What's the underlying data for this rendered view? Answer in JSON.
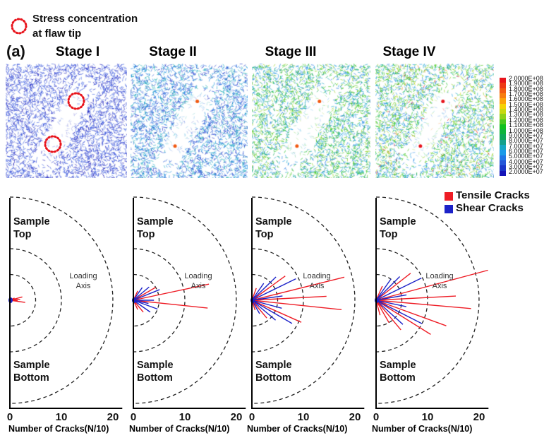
{
  "legend_top": {
    "text_line1": "Stress concentration",
    "text_line2": "at flaw tip",
    "marker_color": "#e8141c"
  },
  "panel_label": "(a)",
  "stages": [
    "Stage I",
    "Stage II",
    "Stage III",
    "Stage IV"
  ],
  "colorbar": {
    "labels": [
      "2.0000E+08",
      "1.9000E+08",
      "1.8000E+08",
      "1.7000E+08",
      "1.6000E+08",
      "1.5000E+08",
      "1.4000E+08",
      "1.3000E+08",
      "1.2000E+08",
      "1.1000E+08",
      "1.0000E+08",
      "9.0000E+07",
      "8.0000E+07",
      "7.0000E+07",
      "6.0000E+07",
      "5.0000E+07",
      "4.0000E+07",
      "3.0000E+07",
      "2.0000E+07"
    ],
    "colors": [
      "#e8141c",
      "#ee3a16",
      "#f25a12",
      "#f77d0e",
      "#fca30a",
      "#f5d204",
      "#c9d810",
      "#8fd018",
      "#4cc81e",
      "#12c01e",
      "#0fb43c",
      "#10a85a",
      "#12a08a",
      "#14a6c4",
      "#1a9ae8",
      "#2076e6",
      "#2456d8",
      "#1a36c8",
      "#1414b8"
    ]
  },
  "crack_legend": {
    "tensile": "Tensile Cracks",
    "shear": "Shear Cracks",
    "tensile_color": "#ee1c25",
    "shear_color": "#1c22c8"
  },
  "rose_text": {
    "top": [
      "Sample",
      "Top"
    ],
    "bottom": [
      "Sample",
      "Bottom"
    ],
    "axis": [
      "Loading",
      "Axis"
    ]
  },
  "chart_data": [
    {
      "type": "rose",
      "title": "Stage I",
      "xlabel": "Number of Cracks(N/10)",
      "xticks": [
        "0",
        "10",
        "20"
      ],
      "xlim": [
        0,
        20
      ],
      "rings": [
        5,
        10,
        20
      ],
      "spokes": [
        {
          "angle": 15,
          "length": 2.5,
          "kind": "tensile"
        },
        {
          "angle": 5,
          "length": 2,
          "kind": "tensile"
        },
        {
          "angle": -8,
          "length": 3,
          "kind": "tensile"
        },
        {
          "angle": -2,
          "length": 1.5,
          "kind": "tensile"
        },
        {
          "angle": 25,
          "length": 1,
          "kind": "tensile"
        }
      ]
    },
    {
      "type": "rose",
      "title": "Stage II",
      "xlabel": "Number of Cracks(N/10)",
      "xticks": [
        "0",
        "10",
        "20"
      ],
      "xlim": [
        0,
        20
      ],
      "rings": [
        5,
        10,
        20
      ],
      "spokes": [
        {
          "angle": 12,
          "length": 15,
          "kind": "tensile"
        },
        {
          "angle": -6,
          "length": 14.5,
          "kind": "tensile"
        },
        {
          "angle": 30,
          "length": 5,
          "kind": "tensile"
        },
        {
          "angle": 22,
          "length": 5.5,
          "kind": "shear"
        },
        {
          "angle": 40,
          "length": 4,
          "kind": "shear"
        },
        {
          "angle": 55,
          "length": 3,
          "kind": "shear"
        },
        {
          "angle": -20,
          "length": 5,
          "kind": "shear"
        },
        {
          "angle": -35,
          "length": 4,
          "kind": "shear"
        },
        {
          "angle": -50,
          "length": 3,
          "kind": "tensile"
        },
        {
          "angle": 65,
          "length": 2,
          "kind": "tensile"
        },
        {
          "angle": -65,
          "length": 2,
          "kind": "tensile"
        },
        {
          "angle": 0,
          "length": 4,
          "kind": "shear"
        },
        {
          "angle": -12,
          "length": 3,
          "kind": "shear"
        }
      ]
    },
    {
      "type": "rose",
      "title": "Stage III",
      "xlabel": "Number of Cracks(N/10)",
      "xticks": [
        "0",
        "10",
        "20"
      ],
      "xlim": [
        0,
        20
      ],
      "rings": [
        5,
        10,
        20
      ],
      "spokes": [
        {
          "angle": 14,
          "length": 18.5,
          "kind": "tensile"
        },
        {
          "angle": 3,
          "length": 14.5,
          "kind": "tensile"
        },
        {
          "angle": -6,
          "length": 17.5,
          "kind": "tensile"
        },
        {
          "angle": -24,
          "length": 10.5,
          "kind": "tensile"
        },
        {
          "angle": 26,
          "length": 9.5,
          "kind": "shear"
        },
        {
          "angle": 36,
          "length": 8,
          "kind": "tensile"
        },
        {
          "angle": 44,
          "length": 6.5,
          "kind": "shear"
        },
        {
          "angle": 55,
          "length": 4,
          "kind": "shear"
        },
        {
          "angle": -30,
          "length": 9,
          "kind": "shear"
        },
        {
          "angle": -40,
          "length": 6,
          "kind": "shear"
        },
        {
          "angle": -50,
          "length": 4.5,
          "kind": "tensile"
        },
        {
          "angle": -60,
          "length": 3,
          "kind": "shear"
        },
        {
          "angle": 70,
          "length": 2.5,
          "kind": "tensile"
        },
        {
          "angle": -72,
          "length": 2,
          "kind": "tensile"
        },
        {
          "angle": 8,
          "length": 6,
          "kind": "shear"
        },
        {
          "angle": -15,
          "length": 6,
          "kind": "shear"
        }
      ]
    },
    {
      "type": "rose",
      "title": "Stage IV",
      "xlabel": "Number of Cracks(N/10)",
      "xticks": [
        "0",
        "10",
        "20"
      ],
      "xlim": [
        0,
        20
      ],
      "rings": [
        5,
        10,
        20
      ],
      "spokes": [
        {
          "angle": 15,
          "length": 22.5,
          "kind": "tensile"
        },
        {
          "angle": 3,
          "length": 15.5,
          "kind": "tensile"
        },
        {
          "angle": -5,
          "length": 18.5,
          "kind": "tensile"
        },
        {
          "angle": -20,
          "length": 14.5,
          "kind": "tensile"
        },
        {
          "angle": -32,
          "length": 12.5,
          "kind": "tensile"
        },
        {
          "angle": 26,
          "length": 9.8,
          "kind": "shear"
        },
        {
          "angle": 38,
          "length": 8.5,
          "kind": "tensile"
        },
        {
          "angle": 45,
          "length": 6.5,
          "kind": "shear"
        },
        {
          "angle": 55,
          "length": 5,
          "kind": "shear"
        },
        {
          "angle": -27,
          "length": 10,
          "kind": "shear"
        },
        {
          "angle": -42,
          "length": 7,
          "kind": "shear"
        },
        {
          "angle": -50,
          "length": 7.5,
          "kind": "tensile"
        },
        {
          "angle": -60,
          "length": 5,
          "kind": "tensile"
        },
        {
          "angle": 66,
          "length": 3,
          "kind": "tensile"
        },
        {
          "angle": -75,
          "length": 3,
          "kind": "tensile"
        },
        {
          "angle": 10,
          "length": 6,
          "kind": "shear"
        },
        {
          "angle": -12,
          "length": 6,
          "kind": "shear"
        }
      ]
    }
  ]
}
